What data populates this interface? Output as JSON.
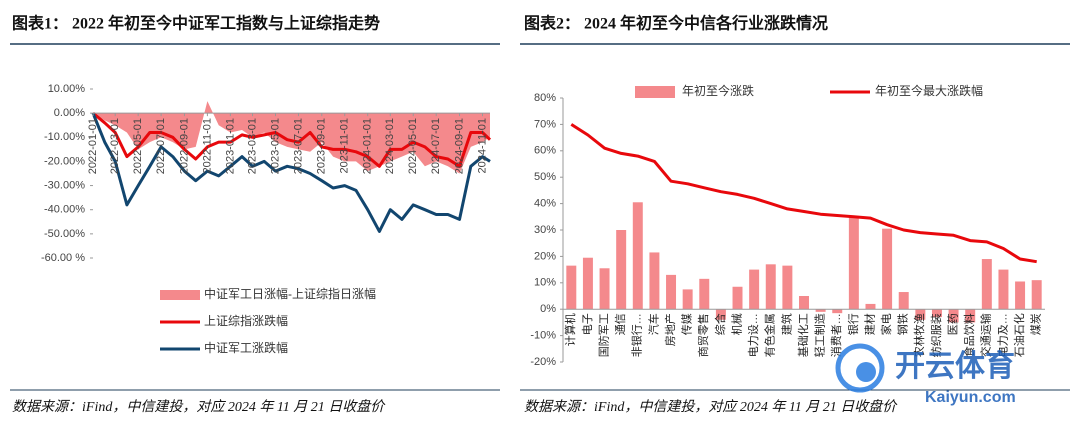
{
  "chart_data": [
    {
      "type": "line",
      "title": "图表1： 2022 年初至今中证军工指数与上证综指走势",
      "source": "数据来源：iFind，中信建投，对应 2024 年 11 月 21 日收盘价",
      "x": [
        "2022-01-01",
        "2022-02-01",
        "2022-03-01",
        "2022-04-01",
        "2022-05-01",
        "2022-06-01",
        "2022-07-01",
        "2022-08-01",
        "2022-09-01",
        "2022-10-01",
        "2022-11-01",
        "2022-12-01",
        "2023-01-01",
        "2023-02-01",
        "2023-03-01",
        "2023-04-01",
        "2023-05-01",
        "2023-06-01",
        "2023-07-01",
        "2023-08-01",
        "2023-09-01",
        "2023-10-01",
        "2023-11-01",
        "2023-12-01",
        "2024-01-01",
        "2024-02-01",
        "2024-03-01",
        "2024-04-01",
        "2024-05-01",
        "2024-06-01",
        "2024-07-01",
        "2024-08-01",
        "2024-09-01",
        "2024-10-01",
        "2024-11-01",
        "2024-11-21"
      ],
      "xlim": [
        "2022-01-01",
        "2024-11-21"
      ],
      "xticks": [
        "2022-01-01",
        "2022-03-01",
        "2022-05-01",
        "2022-07-01",
        "2022-09-01",
        "2022-11-01",
        "2023-01-01",
        "2023-03-01",
        "2023-05-01",
        "2023-07-01",
        "2023-09-01",
        "2023-11-01",
        "2024-01-01",
        "2024-03-01",
        "2024-05-01",
        "2024-07-01",
        "2024-09-01",
        "2024-11-01"
      ],
      "ylim": [
        -60,
        10
      ],
      "yticks": [
        {
          "value": 10,
          "label": "10.00%"
        },
        {
          "value": 0,
          "label": "0.00%"
        },
        {
          "value": -10,
          "label": "-10.00%"
        },
        {
          "value": -20,
          "label": "-20.00%"
        },
        {
          "value": -30,
          "label": "-30.00%"
        },
        {
          "value": -40,
          "label": "-40.00%"
        },
        {
          "value": -50,
          "label": "-50.00%"
        },
        {
          "value": -60,
          "label": "-60.00 %"
        }
      ],
      "series": [
        {
          "name": "中证军工日涨幅-上证综指日涨幅",
          "type": "area",
          "color": "#f4898c",
          "values": [
            0,
            -3,
            -5,
            -8,
            -15,
            -12,
            -10,
            -12,
            -15,
            -14,
            5,
            -5,
            -8,
            -7,
            -10,
            -8,
            -12,
            -14,
            -15,
            -16,
            -12,
            -18,
            -20,
            -20,
            -24,
            -22,
            -20,
            -18,
            -16,
            -22,
            -20,
            -22,
            -25,
            -14,
            -12,
            -10
          ]
        },
        {
          "name": "上证综指涨跌幅",
          "type": "line",
          "color": "#e8080c",
          "values": [
            0,
            -4,
            -8,
            -18,
            -14,
            -8,
            -8,
            -10,
            -15,
            -19,
            -14,
            -12,
            -12,
            -9,
            -10,
            -9,
            -8,
            -11,
            -12,
            -8,
            -14,
            -15,
            -15,
            -16,
            -18,
            -22,
            -15,
            -15,
            -12,
            -14,
            -18,
            -19,
            -22,
            -8,
            -8,
            -11
          ]
        },
        {
          "name": "中证军工涨跌幅",
          "type": "line",
          "color": "#12466f",
          "values": [
            0,
            -12,
            -20,
            -38,
            -30,
            -22,
            -14,
            -18,
            -24,
            -28,
            -24,
            -26,
            -22,
            -18,
            -22,
            -20,
            -24,
            -22,
            -23,
            -25,
            -28,
            -31,
            -30,
            -32,
            -40,
            -49,
            -40,
            -44,
            -38,
            -40,
            -42,
            -42,
            -44,
            -22,
            -18,
            -20
          ]
        }
      ]
    },
    {
      "type": "bar",
      "title": "图表2： 2024 年初至今中信各行业涨跌情况",
      "source": "数据来源：iFind，中信建投，对应 2024 年 11 月 21 日收盘价",
      "categories": [
        "计算机",
        "电子",
        "国防军工",
        "通信",
        "非银行…",
        "汽车",
        "房地产",
        "传媒",
        "商贸零售",
        "综合",
        "机械",
        "电力设…",
        "有色金属",
        "建筑",
        "基础化工",
        "轻工制造",
        "消费者…",
        "银行",
        "建材",
        "家电",
        "钢铁",
        "农林牧渔",
        "纺织服装",
        "医药",
        "食品饮料",
        "交通运输",
        "电力及…",
        "石油石化",
        "煤炭"
      ],
      "ylim": [
        -20,
        80
      ],
      "yticks": [
        {
          "value": 80,
          "label": "80%"
        },
        {
          "value": 70,
          "label": "70%"
        },
        {
          "value": 60,
          "label": "60%"
        },
        {
          "value": 50,
          "label": "50%"
        },
        {
          "value": 40,
          "label": "40%"
        },
        {
          "value": 30,
          "label": "30%"
        },
        {
          "value": 20,
          "label": "20%"
        },
        {
          "value": 10,
          "label": "10%"
        },
        {
          "value": 0,
          "label": "0%"
        },
        {
          "value": -10,
          "label": "-10%"
        },
        {
          "value": -20,
          "label": "-20%"
        }
      ],
      "series": [
        {
          "name": "年初至今涨跌",
          "type": "bar",
          "color": "#f4898c",
          "values": [
            16.5,
            19.5,
            15.5,
            30,
            40.5,
            21.5,
            13,
            7.5,
            11.5,
            -4,
            8.5,
            15,
            17,
            16.5,
            5,
            -1,
            -1.5,
            35,
            2,
            30.5,
            6.5,
            -4,
            -3,
            -5,
            -5,
            19,
            15,
            10.5,
            11
          ]
        },
        {
          "name": "年初至今最大涨跌幅",
          "type": "line",
          "color": "#e8080c",
          "values": [
            70,
            66,
            61,
            59,
            58,
            56,
            48.5,
            47.5,
            46,
            44.5,
            43.5,
            42,
            40,
            38,
            37,
            36,
            35.5,
            35,
            34.5,
            32,
            30,
            29,
            28.5,
            28,
            26,
            25.5,
            23,
            19,
            18
          ]
        }
      ]
    }
  ],
  "watermark": {
    "name": "开云体育",
    "site": "Kaiyun.com"
  }
}
